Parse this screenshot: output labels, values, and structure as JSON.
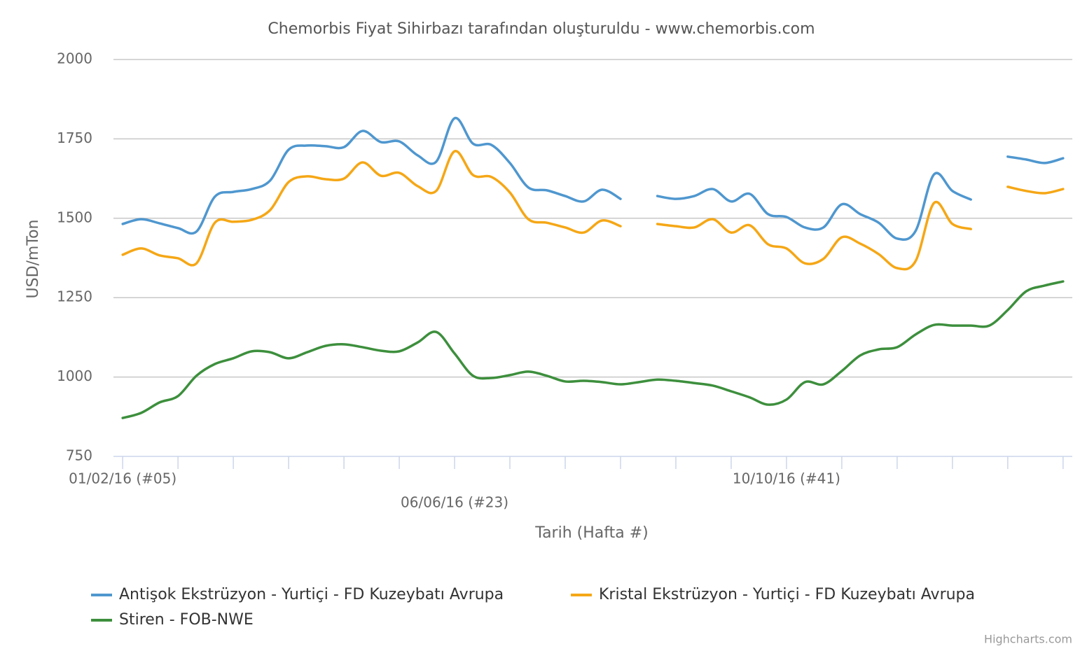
{
  "chart_data": {
    "type": "line",
    "title": "Chemorbis Fiyat Sihirbazı tarafından oluşturuldu - www.chemorbis.com",
    "x_label": "Tarih (Hafta #)",
    "y_label": "USD/mTon",
    "credits": "Highcharts.com",
    "categories": [
      "01/02/16 (#05)",
      null,
      null,
      null,
      null,
      null,
      null,
      null,
      null,
      null,
      null,
      null,
      null,
      null,
      null,
      null,
      null,
      null,
      "06/06/16 (#23)",
      null,
      null,
      null,
      null,
      null,
      null,
      null,
      null,
      null,
      null,
      null,
      null,
      null,
      null,
      null,
      null,
      null,
      "10/10/16 (#41)",
      null,
      null,
      null,
      null,
      null,
      null,
      null,
      null,
      null,
      null,
      null,
      null,
      null,
      null,
      null
    ],
    "ylim": [
      750,
      2000
    ],
    "yticks": [
      750,
      1000,
      1250,
      1500,
      1750,
      2000
    ],
    "grid": true,
    "series": [
      {
        "name": "Antişok Ekstrüzyon - Yurtiçi - FD Kuzeybatı Avrupa",
        "color": "#4f97cf",
        "values": [
          1482,
          1497,
          1484,
          1469,
          1458,
          1568,
          1583,
          1592,
          1619,
          1716,
          1729,
          1727,
          1724,
          1775,
          1740,
          1742,
          1698,
          1678,
          1815,
          1735,
          1731,
          1674,
          1597,
          1588,
          1570,
          1553,
          1590,
          1561,
          null,
          1570,
          1561,
          1570,
          1592,
          1553,
          1577,
          1513,
          1504,
          1471,
          1471,
          1544,
          1513,
          1486,
          1436,
          1460,
          1638,
          1586,
          1559,
          null,
          1694,
          1685,
          1674,
          1689
        ]
      },
      {
        "name": "Kristal Ekstrüzyon - Yurtiçi - FD Kuzeybatı Avrupa",
        "color": "#f5a716",
        "values": [
          1385,
          1405,
          1383,
          1374,
          1358,
          1486,
          1489,
          1495,
          1526,
          1614,
          1632,
          1623,
          1625,
          1676,
          1634,
          1643,
          1601,
          1586,
          1711,
          1636,
          1630,
          1581,
          1497,
          1486,
          1471,
          1455,
          1493,
          1475,
          null,
          1482,
          1475,
          1471,
          1497,
          1455,
          1478,
          1418,
          1405,
          1358,
          1372,
          1440,
          1420,
          1387,
          1343,
          1365,
          1548,
          1482,
          1466,
          null,
          1599,
          1586,
          1579,
          1592
        ]
      },
      {
        "name": "Stiren - FOB-NWE",
        "color": "#3d8f3d",
        "values": [
          871,
          887,
          920,
          940,
          1004,
          1041,
          1059,
          1081,
          1078,
          1059,
          1078,
          1098,
          1103,
          1094,
          1083,
          1081,
          1109,
          1142,
          1074,
          1004,
          997,
          1006,
          1017,
          1004,
          986,
          988,
          984,
          977,
          984,
          992,
          988,
          981,
          973,
          955,
          936,
          913,
          929,
          984,
          977,
          1019,
          1068,
          1087,
          1094,
          1134,
          1164,
          1162,
          1162,
          1162,
          1211,
          1270,
          1288,
          1301
        ]
      }
    ]
  }
}
